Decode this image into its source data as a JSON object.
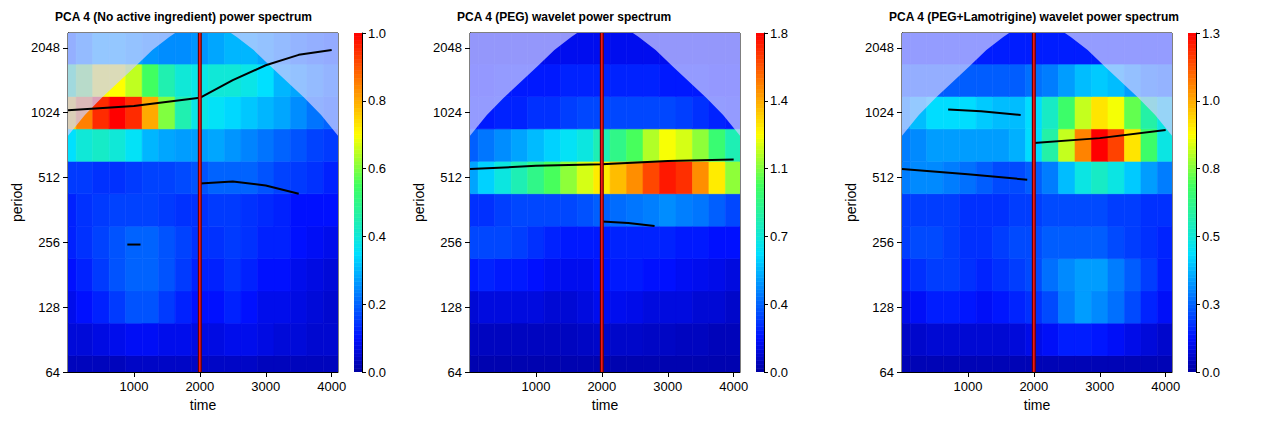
{
  "chart_data": [
    {
      "type": "heatmap",
      "title": "PCA 4 (No active ingredient) power spectrum",
      "x_label": "time",
      "y_label": "period",
      "log": "y",
      "xlim": [
        0,
        4096
      ],
      "xticks": [
        1000,
        2000,
        3000,
        4000
      ],
      "ylim": [
        64,
        2400
      ],
      "yticks": [
        64,
        128,
        256,
        512,
        1024,
        2048
      ],
      "time": [
        0,
        250,
        500,
        750,
        1000,
        1250,
        1500,
        1750,
        2000,
        2250,
        2500,
        2750,
        3000,
        3250,
        3500,
        3750,
        4000
      ],
      "period": [
        64,
        91,
        128,
        181,
        256,
        362,
        512,
        724,
        1024,
        1448,
        2048
      ],
      "power": [
        [
          0.03,
          0.03,
          0.03,
          0.03,
          0.04,
          0.04,
          0.04,
          0.04,
          0.04,
          0.04,
          0.04,
          0.04,
          0.03,
          0.03,
          0.03,
          0.03,
          0.03
        ],
        [
          0.06,
          0.06,
          0.07,
          0.08,
          0.09,
          0.09,
          0.08,
          0.08,
          0.07,
          0.07,
          0.08,
          0.08,
          0.07,
          0.06,
          0.06,
          0.05,
          0.05
        ],
        [
          0.08,
          0.1,
          0.12,
          0.15,
          0.18,
          0.18,
          0.15,
          0.12,
          0.1,
          0.1,
          0.12,
          0.1,
          0.08,
          0.08,
          0.07,
          0.06,
          0.05
        ],
        [
          0.1,
          0.12,
          0.15,
          0.18,
          0.2,
          0.2,
          0.18,
          0.15,
          0.12,
          0.12,
          0.14,
          0.12,
          0.1,
          0.1,
          0.08,
          0.07,
          0.06
        ],
        [
          0.12,
          0.14,
          0.16,
          0.18,
          0.2,
          0.2,
          0.18,
          0.16,
          0.14,
          0.14,
          0.15,
          0.14,
          0.12,
          0.12,
          0.1,
          0.09,
          0.08
        ],
        [
          0.12,
          0.14,
          0.15,
          0.16,
          0.16,
          0.16,
          0.15,
          0.14,
          0.14,
          0.15,
          0.15,
          0.14,
          0.13,
          0.12,
          0.1,
          0.1,
          0.1
        ],
        [
          0.15,
          0.15,
          0.14,
          0.14,
          0.15,
          0.16,
          0.16,
          0.17,
          0.18,
          0.2,
          0.2,
          0.2,
          0.18,
          0.16,
          0.15,
          0.14,
          0.12
        ],
        [
          0.35,
          0.4,
          0.42,
          0.4,
          0.36,
          0.3,
          0.28,
          0.27,
          0.27,
          0.28,
          0.26,
          0.24,
          0.22,
          0.2,
          0.18,
          0.16,
          0.15
        ],
        [
          0.75,
          0.85,
          0.95,
          1.0,
          0.95,
          0.8,
          0.6,
          0.45,
          0.38,
          0.36,
          0.34,
          0.32,
          0.3,
          0.28,
          0.25,
          0.22,
          0.2
        ],
        [
          0.5,
          0.6,
          0.7,
          0.7,
          0.65,
          0.55,
          0.45,
          0.4,
          0.38,
          0.4,
          0.4,
          0.38,
          0.35,
          0.3,
          0.28,
          0.25,
          0.22
        ],
        [
          0.2,
          0.25,
          0.3,
          0.3,
          0.28,
          0.26,
          0.25,
          0.25,
          0.26,
          0.28,
          0.3,
          0.3,
          0.28,
          0.25,
          0.22,
          0.2,
          0.18
        ]
      ],
      "colorbar_range": [
        0,
        1.0
      ],
      "colorbar_ticks": [
        {
          "value": 0,
          "label": "0.0"
        },
        0.2,
        0.4,
        0.6,
        0.8,
        {
          "value": 1.0,
          "label": "1.0"
        }
      ],
      "coi": {
        "time": [
          0,
          256,
          512,
          768,
          1024,
          1280,
          1536,
          1792,
          2048,
          2304,
          2560,
          2816,
          3072,
          3328,
          3584,
          3840,
          4096
        ],
        "period": [
          800,
          1000,
          1200,
          1420,
          1680,
          2000,
          2300,
          2600,
          2800,
          2600,
          2300,
          2000,
          1680,
          1420,
          1200,
          1000,
          800
        ]
      },
      "ridges": [
        {
          "time": [
            0,
            1000,
            2000,
            2500,
            3000,
            3500,
            4000
          ],
          "period": [
            1050,
            1100,
            1200,
            1450,
            1700,
            1900,
            2000
          ]
        },
        {
          "time": [
            2000,
            2500,
            3000,
            3500
          ],
          "period": [
            480,
            490,
            470,
            430
          ]
        },
        {
          "time": [
            900,
            1100
          ],
          "period": [
            250,
            250
          ]
        }
      ],
      "vline": 2000
    },
    {
      "type": "heatmap",
      "title": "PCA 4 (PEG) wavelet power spectrum",
      "x_label": "time",
      "y_label": "period",
      "log": "y",
      "xlim": [
        0,
        4096
      ],
      "xticks": [
        1000,
        2000,
        3000,
        4000
      ],
      "ylim": [
        64,
        2400
      ],
      "yticks": [
        64,
        128,
        256,
        512,
        1024,
        2048
      ],
      "time": [
        0,
        250,
        500,
        750,
        1000,
        1250,
        1500,
        1750,
        2000,
        2250,
        2500,
        2750,
        3000,
        3250,
        3500,
        3750,
        4000
      ],
      "period": [
        64,
        91,
        128,
        181,
        256,
        362,
        512,
        724,
        1024,
        1448,
        2048
      ],
      "power": [
        [
          0.03,
          0.03,
          0.03,
          0.03,
          0.03,
          0.03,
          0.03,
          0.03,
          0.03,
          0.03,
          0.03,
          0.03,
          0.03,
          0.03,
          0.03,
          0.03,
          0.03
        ],
        [
          0.06,
          0.06,
          0.06,
          0.06,
          0.06,
          0.06,
          0.06,
          0.07,
          0.08,
          0.08,
          0.08,
          0.07,
          0.07,
          0.06,
          0.06,
          0.05,
          0.05
        ],
        [
          0.1,
          0.12,
          0.12,
          0.12,
          0.12,
          0.1,
          0.1,
          0.12,
          0.15,
          0.15,
          0.14,
          0.12,
          0.12,
          0.12,
          0.1,
          0.1,
          0.08
        ],
        [
          0.2,
          0.22,
          0.2,
          0.2,
          0.18,
          0.16,
          0.15,
          0.15,
          0.18,
          0.2,
          0.2,
          0.18,
          0.18,
          0.16,
          0.15,
          0.14,
          0.12
        ],
        [
          0.3,
          0.3,
          0.3,
          0.28,
          0.25,
          0.22,
          0.2,
          0.2,
          0.2,
          0.22,
          0.22,
          0.22,
          0.22,
          0.2,
          0.2,
          0.18,
          0.18
        ],
        [
          0.25,
          0.25,
          0.28,
          0.3,
          0.3,
          0.3,
          0.3,
          0.32,
          0.35,
          0.38,
          0.4,
          0.42,
          0.45,
          0.42,
          0.4,
          0.35,
          0.3
        ],
        [
          0.5,
          0.6,
          0.7,
          0.8,
          0.9,
          1.0,
          1.1,
          1.2,
          1.3,
          1.4,
          1.5,
          1.65,
          1.75,
          1.7,
          1.5,
          1.3,
          1.1
        ],
        [
          0.35,
          0.4,
          0.45,
          0.5,
          0.55,
          0.6,
          0.65,
          0.7,
          0.8,
          0.9,
          1.0,
          1.15,
          1.25,
          1.2,
          1.1,
          0.95,
          0.8
        ],
        [
          0.2,
          0.2,
          0.22,
          0.22,
          0.25,
          0.25,
          0.28,
          0.3,
          0.3,
          0.3,
          0.3,
          0.3,
          0.3,
          0.28,
          0.25,
          0.22,
          0.2
        ],
        [
          0.18,
          0.18,
          0.2,
          0.2,
          0.2,
          0.2,
          0.22,
          0.22,
          0.22,
          0.22,
          0.22,
          0.22,
          0.2,
          0.2,
          0.2,
          0.18,
          0.18
        ],
        [
          0.15,
          0.15,
          0.15,
          0.15,
          0.15,
          0.15,
          0.15,
          0.15,
          0.15,
          0.15,
          0.15,
          0.15,
          0.15,
          0.15,
          0.15,
          0.15,
          0.15
        ]
      ],
      "colorbar_range": [
        0,
        1.8
      ],
      "colorbar_ticks": [
        {
          "value": 0,
          "label": "0.0"
        },
        {
          "value": 0.36,
          "label": "0.4"
        },
        {
          "value": 0.72,
          "label": "0.7"
        },
        {
          "value": 1.08,
          "label": "1.1"
        },
        {
          "value": 1.44,
          "label": "1.4"
        },
        1.8
      ],
      "coi": {
        "time": [
          0,
          256,
          512,
          768,
          1024,
          1280,
          1536,
          1792,
          2048,
          2304,
          2560,
          2816,
          3072,
          3328,
          3584,
          3840,
          4096
        ],
        "period": [
          800,
          1000,
          1200,
          1420,
          1680,
          2000,
          2300,
          2600,
          2800,
          2600,
          2300,
          2000,
          1680,
          1420,
          1200,
          1000,
          800
        ]
      },
      "ridges": [
        {
          "time": [
            0,
            1000,
            2000,
            3000,
            4000
          ],
          "period": [
            560,
            580,
            590,
            610,
            620
          ]
        },
        {
          "time": [
            2000,
            2400,
            2800
          ],
          "period": [
            320,
            315,
            305
          ]
        }
      ],
      "vline": 2000
    },
    {
      "type": "heatmap",
      "title": "PCA 4 (PEG+Lamotrigine) wavelet power spectrum",
      "x_label": "time",
      "y_label": "period",
      "log": "y",
      "xlim": [
        0,
        4096
      ],
      "xticks": [
        1000,
        2000,
        3000,
        4000
      ],
      "ylim": [
        64,
        2400
      ],
      "yticks": [
        64,
        128,
        256,
        512,
        1024,
        2048
      ],
      "time": [
        0,
        250,
        500,
        750,
        1000,
        1250,
        1500,
        1750,
        2000,
        2250,
        2500,
        2750,
        3000,
        3250,
        3500,
        3750,
        4000
      ],
      "period": [
        64,
        91,
        128,
        181,
        256,
        362,
        512,
        724,
        1024,
        1448,
        2048
      ],
      "power": [
        [
          0.03,
          0.03,
          0.03,
          0.03,
          0.03,
          0.03,
          0.03,
          0.03,
          0.03,
          0.03,
          0.03,
          0.03,
          0.03,
          0.03,
          0.03,
          0.03,
          0.03
        ],
        [
          0.05,
          0.06,
          0.07,
          0.07,
          0.07,
          0.07,
          0.07,
          0.08,
          0.1,
          0.12,
          0.15,
          0.15,
          0.14,
          0.12,
          0.1,
          0.08,
          0.06
        ],
        [
          0.1,
          0.12,
          0.15,
          0.15,
          0.14,
          0.12,
          0.14,
          0.16,
          0.18,
          0.22,
          0.3,
          0.35,
          0.32,
          0.28,
          0.22,
          0.16,
          0.12
        ],
        [
          0.15,
          0.18,
          0.2,
          0.2,
          0.18,
          0.16,
          0.18,
          0.2,
          0.22,
          0.28,
          0.32,
          0.35,
          0.35,
          0.3,
          0.25,
          0.2,
          0.15
        ],
        [
          0.2,
          0.22,
          0.22,
          0.2,
          0.18,
          0.18,
          0.2,
          0.22,
          0.22,
          0.25,
          0.25,
          0.25,
          0.25,
          0.22,
          0.2,
          0.18,
          0.16
        ],
        [
          0.2,
          0.2,
          0.2,
          0.2,
          0.18,
          0.18,
          0.18,
          0.2,
          0.2,
          0.22,
          0.22,
          0.22,
          0.22,
          0.2,
          0.2,
          0.18,
          0.18
        ],
        [
          0.3,
          0.32,
          0.32,
          0.3,
          0.28,
          0.25,
          0.22,
          0.22,
          0.25,
          0.3,
          0.4,
          0.5,
          0.55,
          0.5,
          0.42,
          0.35,
          0.3
        ],
        [
          0.3,
          0.32,
          0.35,
          0.35,
          0.35,
          0.35,
          0.35,
          0.38,
          0.45,
          0.6,
          0.85,
          1.1,
          1.3,
          1.2,
          0.95,
          0.7,
          0.5
        ],
        [
          0.35,
          0.4,
          0.45,
          0.45,
          0.45,
          0.42,
          0.4,
          0.4,
          0.45,
          0.55,
          0.7,
          0.85,
          0.95,
          0.9,
          0.75,
          0.6,
          0.5
        ],
        [
          0.25,
          0.25,
          0.25,
          0.25,
          0.25,
          0.25,
          0.25,
          0.25,
          0.28,
          0.3,
          0.35,
          0.4,
          0.42,
          0.4,
          0.35,
          0.3,
          0.28
        ],
        [
          0.15,
          0.15,
          0.15,
          0.15,
          0.15,
          0.15,
          0.15,
          0.15,
          0.15,
          0.15,
          0.15,
          0.15,
          0.15,
          0.15,
          0.15,
          0.15,
          0.15
        ]
      ],
      "colorbar_range": [
        0,
        1.3
      ],
      "colorbar_ticks": [
        {
          "value": 0,
          "label": "0.0"
        },
        {
          "value": 0.26,
          "label": "0.3"
        },
        {
          "value": 0.52,
          "label": "0.5"
        },
        {
          "value": 0.78,
          "label": "0.8"
        },
        {
          "value": 1.04,
          "label": "1.0"
        },
        1.3
      ],
      "coi": {
        "time": [
          0,
          256,
          512,
          768,
          1024,
          1280,
          1536,
          1792,
          2048,
          2304,
          2560,
          2816,
          3072,
          3328,
          3584,
          3840,
          4096
        ],
        "period": [
          800,
          1000,
          1200,
          1420,
          1680,
          2000,
          2300,
          2600,
          2800,
          2600,
          2300,
          2000,
          1680,
          1420,
          1200,
          1000,
          800
        ]
      },
      "ridges": [
        {
          "time": [
            700,
            1200,
            1800
          ],
          "period": [
            1060,
            1040,
            1000
          ]
        },
        {
          "time": [
            0,
            1000,
            1900
          ],
          "period": [
            560,
            530,
            500
          ]
        },
        {
          "time": [
            2000,
            3000,
            4000
          ],
          "period": [
            740,
            780,
            850
          ]
        }
      ],
      "vline": 2000
    }
  ]
}
